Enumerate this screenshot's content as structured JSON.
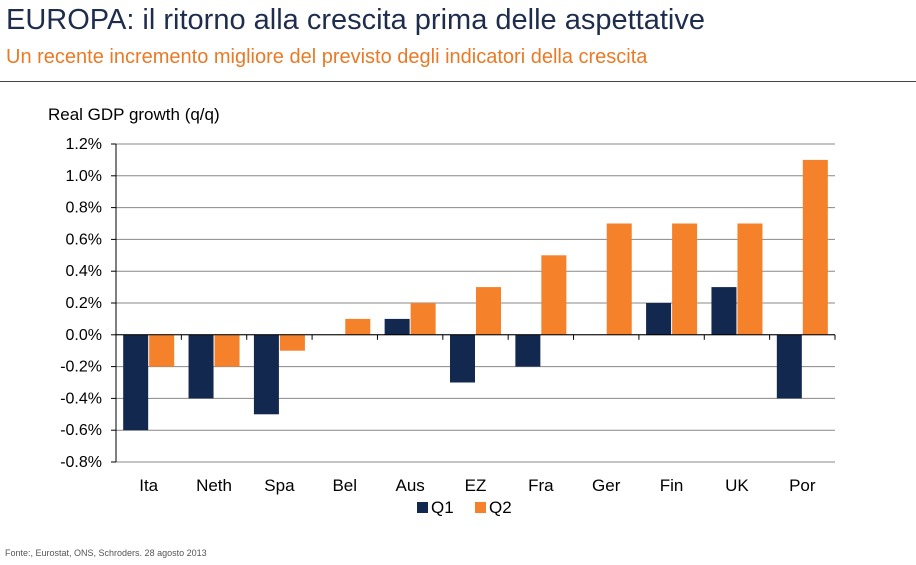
{
  "header": {
    "title": "EUROPA: il ritorno alla crescita prima delle aspettative",
    "subtitle": "Un recente incremento migliore del previsto degli indicatori della crescita"
  },
  "footer": {
    "source": "Fonte:, Eurostat, ONS,  Schroders. 28 agosto 2013"
  },
  "chart_data": {
    "type": "bar",
    "title": "Real GDP growth (q/q)",
    "categories": [
      "Ita",
      "Neth",
      "Spa",
      "Bel",
      "Aus",
      "EZ",
      "Fra",
      "Ger",
      "Fin",
      "UK",
      "Por"
    ],
    "series": [
      {
        "name": "Q1",
        "values": [
          -0.6,
          -0.4,
          -0.5,
          0.0,
          0.1,
          -0.3,
          -0.2,
          0.0,
          0.2,
          0.3,
          -0.4
        ]
      },
      {
        "name": "Q2",
        "values": [
          -0.2,
          -0.2,
          -0.1,
          0.1,
          0.2,
          0.3,
          0.5,
          0.7,
          0.7,
          0.7,
          1.1
        ]
      }
    ],
    "ylim": [
      -0.8,
      1.2
    ],
    "yticks": [
      1.2,
      1.0,
      0.8,
      0.6,
      0.4,
      0.2,
      0.0,
      -0.2,
      -0.4,
      -0.6,
      -0.8
    ],
    "ytick_labels": [
      "1.2%",
      "1.0%",
      "0.8%",
      "0.6%",
      "0.4%",
      "0.2%",
      "0.0%",
      "-0.2%",
      "-0.4%",
      "-0.6%",
      "-0.8%"
    ],
    "colors": {
      "Q1": "#13284f",
      "Q2": "#f5812a",
      "grid": "#888888"
    },
    "grid": true,
    "legend_position": "bottom"
  }
}
